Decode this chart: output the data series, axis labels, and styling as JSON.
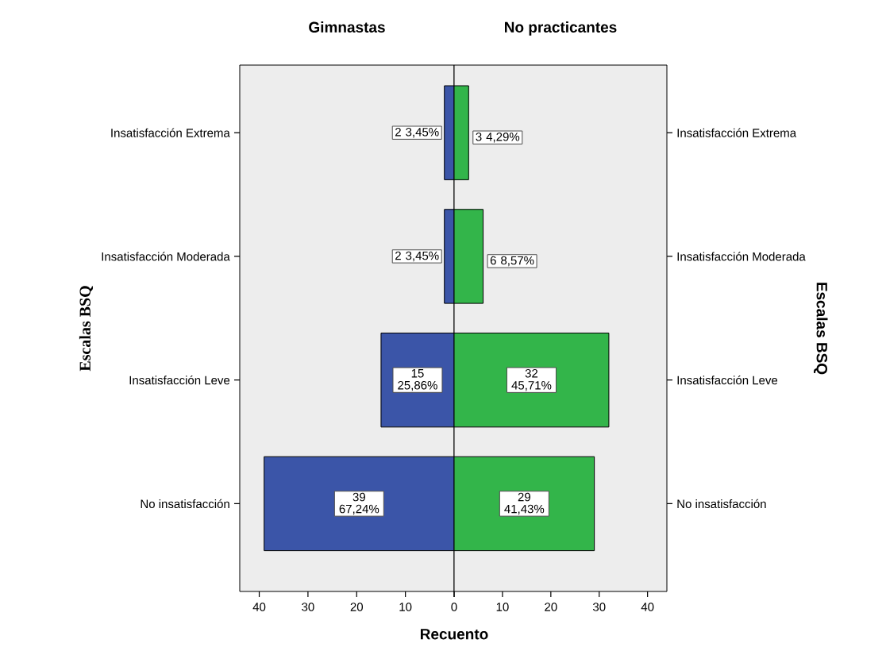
{
  "chart_data": [
    {
      "type": "bar",
      "orientation": "horizontal",
      "title": "Gimnastas",
      "xlabel": "Recuento",
      "ylabel": "Escalas BSQ",
      "categories": [
        "Insatisfacción Extrema",
        "Insatisfacción Moderada",
        "Insatisfacción Leve",
        "No insatisfacción"
      ],
      "values": [
        2,
        2,
        15,
        39
      ],
      "color": "#3b55a8",
      "value_labels": [
        "2 3,45%",
        "2 3,45%",
        "15 25,86%",
        "39 67,24%"
      ],
      "xlim": [
        44,
        0
      ],
      "xticks": [
        40,
        30,
        20,
        10,
        0
      ]
    },
    {
      "type": "bar",
      "orientation": "horizontal",
      "title": "No practicantes",
      "ylabel": "Escalas BSQ",
      "categories": [
        "Insatisfacción Extrema",
        "Insatisfacción Moderada",
        "Insatisfacción Leve",
        "No insatisfacción"
      ],
      "values": [
        3,
        6,
        32,
        29
      ],
      "color": "#33b54a",
      "value_labels": [
        "3 4,29%",
        "6 8,57%",
        "32 45,71%",
        "29 41,43%"
      ],
      "xlim": [
        0,
        44
      ],
      "xticks": [
        {
          "value": 0,
          "label": null
        },
        10,
        20,
        30,
        40
      ]
    }
  ]
}
